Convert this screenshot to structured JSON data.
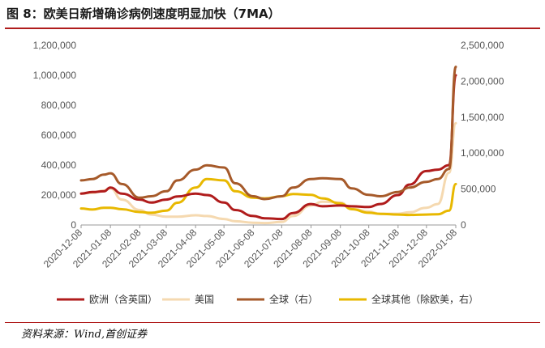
{
  "figure": {
    "title": "图 8：欧美日新增确诊病例速度明显加快（7MA）",
    "source": "资料来源：Wind,首创证券"
  },
  "chart_data": {
    "type": "line",
    "title": "欧美日新增确诊病例速度明显加快（7MA）",
    "x_ticks": [
      "2020-12-08",
      "2021-01-08",
      "2021-02-08",
      "2021-03-08",
      "2021-04-08",
      "2021-05-08",
      "2021-06-08",
      "2021-07-08",
      "2021-08-08",
      "2021-09-08",
      "2021-10-08",
      "2021-11-08",
      "2021-12-08",
      "2022-01-08"
    ],
    "y_left": {
      "ticks": [
        "0",
        "200,000",
        "400,000",
        "600,000",
        "800,000",
        "1,000,000",
        "1,200,000"
      ],
      "ylim": [
        0,
        1200000
      ]
    },
    "y_right": {
      "ticks": [
        "0",
        "500,000",
        "1,000,000",
        "1,500,000",
        "2,000,000",
        "2,500,000"
      ],
      "ylim": [
        0,
        2500000
      ]
    },
    "grid": false,
    "legend_position": "bottom",
    "series": [
      {
        "name": "欧洲（含英国）",
        "axis": "left",
        "color": "#b01c1c",
        "x": [
          "2020-12-08",
          "2020-12-20",
          "2021-01-01",
          "2021-01-08",
          "2021-01-20",
          "2021-02-08",
          "2021-02-20",
          "2021-03-08",
          "2021-03-20",
          "2021-04-08",
          "2021-04-20",
          "2021-05-08",
          "2021-05-20",
          "2021-06-08",
          "2021-06-20",
          "2021-07-08",
          "2021-07-20",
          "2021-08-08",
          "2021-08-20",
          "2021-09-08",
          "2021-09-20",
          "2021-10-08",
          "2021-10-20",
          "2021-11-08",
          "2021-11-20",
          "2021-12-08",
          "2021-12-20",
          "2022-01-01",
          "2022-01-08"
        ],
        "values": [
          210000,
          220000,
          225000,
          250000,
          210000,
          170000,
          150000,
          170000,
          190000,
          210000,
          200000,
          150000,
          100000,
          60000,
          45000,
          40000,
          80000,
          140000,
          125000,
          130000,
          125000,
          120000,
          140000,
          200000,
          270000,
          360000,
          370000,
          400000,
          1000000
        ]
      },
      {
        "name": "美国",
        "axis": "left",
        "color": "#f5d9b0",
        "x": [
          "2020-12-08",
          "2020-12-20",
          "2021-01-01",
          "2021-01-08",
          "2021-01-20",
          "2021-02-08",
          "2021-02-20",
          "2021-03-08",
          "2021-03-20",
          "2021-04-08",
          "2021-04-20",
          "2021-05-08",
          "2021-05-20",
          "2021-06-08",
          "2021-06-20",
          "2021-07-08",
          "2021-07-20",
          "2021-08-08",
          "2021-08-20",
          "2021-09-08",
          "2021-09-20",
          "2021-10-08",
          "2021-10-20",
          "2021-11-08",
          "2021-11-20",
          "2021-12-08",
          "2021-12-20",
          "2022-01-01",
          "2022-01-08"
        ],
        "values": [
          210000,
          215000,
          230000,
          245000,
          170000,
          100000,
          70000,
          55000,
          55000,
          65000,
          60000,
          40000,
          25000,
          15000,
          13000,
          20000,
          60000,
          130000,
          155000,
          150000,
          110000,
          90000,
          75000,
          75000,
          85000,
          115000,
          140000,
          350000,
          680000
        ]
      },
      {
        "name": "全球（右）",
        "axis": "right",
        "color": "#a65a2a",
        "x": [
          "2020-12-08",
          "2020-12-20",
          "2021-01-01",
          "2021-01-08",
          "2021-01-20",
          "2021-02-08",
          "2021-02-20",
          "2021-03-08",
          "2021-03-20",
          "2021-04-08",
          "2021-04-20",
          "2021-05-08",
          "2021-05-20",
          "2021-06-08",
          "2021-06-20",
          "2021-07-08",
          "2021-07-20",
          "2021-08-08",
          "2021-08-20",
          "2021-09-08",
          "2021-09-20",
          "2021-10-08",
          "2021-10-20",
          "2021-11-08",
          "2021-11-20",
          "2021-12-08",
          "2021-12-20",
          "2022-01-01",
          "2022-01-08"
        ],
        "values": [
          620000,
          640000,
          700000,
          720000,
          570000,
          380000,
          400000,
          470000,
          620000,
          770000,
          830000,
          800000,
          580000,
          400000,
          360000,
          400000,
          520000,
          640000,
          650000,
          640000,
          510000,
          420000,
          400000,
          460000,
          520000,
          600000,
          640000,
          780000,
          2200000
        ]
      },
      {
        "name": "全球其他（除欧美，右）",
        "axis": "right",
        "color": "#e8b800",
        "x": [
          "2020-12-08",
          "2020-12-20",
          "2021-01-01",
          "2021-01-08",
          "2021-01-20",
          "2021-02-08",
          "2021-02-20",
          "2021-03-08",
          "2021-03-20",
          "2021-04-08",
          "2021-04-20",
          "2021-05-08",
          "2021-05-20",
          "2021-06-08",
          "2021-06-20",
          "2021-07-08",
          "2021-07-20",
          "2021-08-08",
          "2021-08-20",
          "2021-09-08",
          "2021-09-20",
          "2021-10-08",
          "2021-10-20",
          "2021-11-08",
          "2021-11-20",
          "2021-12-08",
          "2021-12-20",
          "2022-01-01",
          "2022-01-08"
        ],
        "values": [
          230000,
          215000,
          240000,
          240000,
          220000,
          180000,
          170000,
          200000,
          310000,
          520000,
          640000,
          620000,
          470000,
          380000,
          370000,
          400000,
          430000,
          420000,
          370000,
          300000,
          220000,
          170000,
          155000,
          145000,
          140000,
          145000,
          150000,
          200000,
          570000
        ]
      }
    ]
  }
}
